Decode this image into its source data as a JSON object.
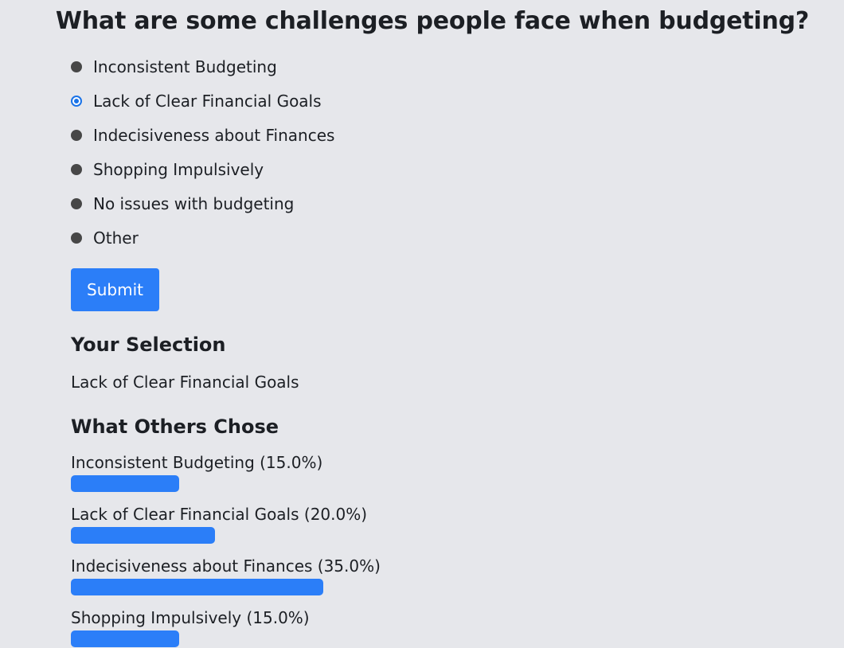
{
  "question": "What are some challenges people face when budgeting?",
  "options": [
    {
      "label": "Inconsistent Budgeting",
      "checked": false
    },
    {
      "label": "Lack of Clear Financial Goals",
      "checked": true
    },
    {
      "label": "Indecisiveness about Finances",
      "checked": false
    },
    {
      "label": "Shopping Impulsively",
      "checked": false
    },
    {
      "label": "No issues with budgeting",
      "checked": false
    },
    {
      "label": "Other",
      "checked": false
    }
  ],
  "submit_label": "Submit",
  "selection": {
    "title": "Your Selection",
    "value": "Lack of Clear Financial Goals"
  },
  "others": {
    "title": "What Others Chose",
    "results": [
      {
        "label": "Inconsistent Budgeting (15.0%)",
        "percent": 15.0
      },
      {
        "label": "Lack of Clear Financial Goals (20.0%)",
        "percent": 20.0
      },
      {
        "label": "Indecisiveness about Finances (35.0%)",
        "percent": 35.0
      },
      {
        "label": "Shopping Impulsively (15.0%)",
        "percent": 15.0
      }
    ]
  },
  "colors": {
    "accent": "#2b7ef8",
    "radio_checked": "#1a73e8",
    "radio_unchecked": "#474747",
    "background": "#e6e7eb"
  }
}
